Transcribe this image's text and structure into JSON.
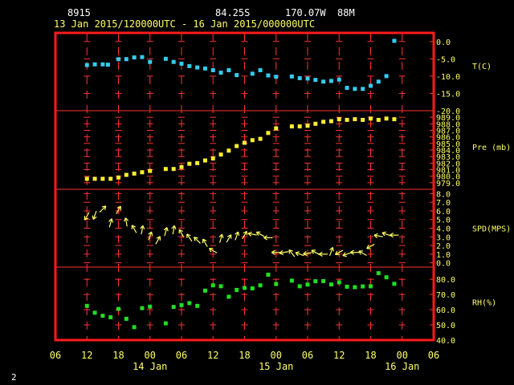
{
  "header": {
    "station": "8915",
    "lat": "84.25S",
    "lon": "170.07W",
    "elev": "88M",
    "period": "13 Jan 2015/120000UTC - 16 Jan 2015/000000UTC"
  },
  "footer": {
    "page_number": "2"
  },
  "colors": {
    "frame": "#ff1a1a",
    "grid": "#ff3333",
    "labels": "#ffff66",
    "temp": "#33ccee",
    "pressure": "#ffee33",
    "wind": "#ffff66",
    "rh": "#22dd22"
  },
  "chart_data": {
    "type": "scatter",
    "x_axis": {
      "tick_labels": [
        "06",
        "12",
        "18",
        "00",
        "06",
        "12",
        "18",
        "00",
        "06",
        "12",
        "18",
        "00",
        "06"
      ],
      "tick_hours": [
        -6,
        0,
        6,
        12,
        18,
        24,
        30,
        36,
        42,
        48,
        54,
        60,
        66
      ],
      "date_labels": [
        {
          "label": "14 Jan",
          "hour": 12
        },
        {
          "label": "15 Jan",
          "hour": 36
        },
        {
          "label": "16 Jan",
          "hour": 60
        }
      ],
      "range_hours": [
        -6,
        66
      ]
    },
    "panels": [
      {
        "id": "temperature",
        "label": "T(C)",
        "ylim": [
          -20,
          2.5
        ],
        "ticks": [
          "0.0",
          "-5.0",
          "-10.0",
          "-15.0",
          "-20.0"
        ],
        "tick_values": [
          0,
          -5,
          -10,
          -15,
          -20
        ],
        "x": [
          0,
          1.5,
          3,
          4,
          6,
          7.5,
          9,
          10.5,
          12,
          15,
          16.5,
          18,
          19.5,
          21,
          22.5,
          24,
          25.5,
          27,
          28.5,
          31.5,
          33,
          34.5,
          36,
          39,
          40.5,
          42,
          43.5,
          45,
          46.5,
          48,
          49.5,
          51,
          52.5,
          54,
          55.5,
          57,
          58.5
        ],
        "y": [
          -6.8,
          -6.6,
          -6.6,
          -6.7,
          -5.1,
          -5.1,
          -4.6,
          -4.5,
          -5.9,
          -5.0,
          -5.9,
          -6.4,
          -7.1,
          -7.5,
          -7.8,
          -8.3,
          -9.0,
          -8.3,
          -9.7,
          -9.3,
          -8.3,
          -9.8,
          -10.2,
          -10.1,
          -10.6,
          -10.7,
          -11.1,
          -11.6,
          -11.4,
          -11.0,
          -13.4,
          -13.7,
          -13.7,
          -12.8,
          -11.6,
          -10.0,
          0.2
        ]
      },
      {
        "id": "pressure",
        "label": "Pre (mb)",
        "ylim": [
          978,
          990
        ],
        "ticks": [
          "989.0",
          "988.0",
          "987.0",
          "986.0",
          "985.0",
          "984.0",
          "983.0",
          "982.0",
          "981.0",
          "980.0",
          "979.0"
        ],
        "tick_values": [
          989,
          988,
          987,
          986,
          985,
          984,
          983,
          982,
          981,
          980,
          979
        ],
        "x": [
          0,
          1.5,
          3,
          4.5,
          6,
          7.5,
          9,
          10.5,
          12,
          15,
          16.5,
          18,
          19.5,
          21,
          22.5,
          24,
          25.5,
          27,
          28.5,
          30,
          31.5,
          33,
          34.5,
          36,
          39,
          40.5,
          42,
          43.5,
          45,
          46.5,
          48,
          49.5,
          51,
          52.5,
          54,
          55.5,
          57,
          58.5
        ],
        "y": [
          979.6,
          979.6,
          979.6,
          979.6,
          979.8,
          980.2,
          980.4,
          980.6,
          980.8,
          981.1,
          981.1,
          981.4,
          981.9,
          982.0,
          982.4,
          982.7,
          983.3,
          983.9,
          984.6,
          985.1,
          985.5,
          985.7,
          986.6,
          987.3,
          987.6,
          987.6,
          987.7,
          988.0,
          988.3,
          988.4,
          988.7,
          988.6,
          988.7,
          988.6,
          988.8,
          988.6,
          988.8,
          988.7
        ]
      },
      {
        "id": "wind_speed",
        "label": "SPD(MPS)",
        "ylim": [
          -0.5,
          8.5
        ],
        "ticks": [
          "8.0",
          "7.0",
          "6.0",
          "5.0",
          "4.0",
          "3.0",
          "2.0",
          "1.0",
          "0.0"
        ],
        "tick_values": [
          8,
          7,
          6,
          5,
          4,
          3,
          2,
          1,
          0
        ],
        "x": [
          0,
          1.5,
          3,
          4.5,
          6,
          7.5,
          9,
          10.5,
          12,
          13.5,
          15,
          16.5,
          18,
          19.5,
          21,
          22.5,
          24,
          25.5,
          27,
          28.5,
          30,
          31.5,
          33,
          34.5,
          36,
          37.5,
          39,
          40.5,
          42,
          43.5,
          45,
          46.5,
          48,
          49.5,
          51,
          52.5,
          54,
          55.5,
          57,
          58.5
        ],
        "y": [
          5.4,
          5.5,
          6.2,
          4.6,
          6.1,
          4.7,
          3.9,
          3.8,
          3.1,
          2.6,
          3.6,
          3.8,
          3.4,
          2.9,
          2.6,
          2.3,
          1.4,
          2.8,
          2.8,
          3.1,
          3.2,
          3.3,
          3.3,
          2.9,
          1.2,
          1.2,
          1.1,
          1.0,
          1.1,
          1.2,
          1.0,
          1.3,
          1.2,
          1.0,
          1.2,
          1.1,
          1.9,
          3.1,
          3.3,
          3.2
        ],
        "direction_deg": [
          210,
          200,
          45,
          15,
          30,
          350,
          330,
          10,
          20,
          30,
          15,
          10,
          330,
          325,
          315,
          330,
          300,
          15,
          30,
          20,
          30,
          280,
          300,
          270,
          270,
          260,
          320,
          290,
          260,
          300,
          270,
          20,
          240,
          250,
          270,
          300,
          240,
          280,
          290,
          270
        ]
      },
      {
        "id": "rh",
        "label": "RH(%)",
        "ylim": [
          40,
          88
        ],
        "ticks": [
          "80.0",
          "70.0",
          "60.0",
          "50.0",
          "40.0"
        ],
        "tick_values": [
          80,
          70,
          60,
          50,
          40
        ],
        "x": [
          0,
          1.5,
          3,
          4.5,
          6,
          7.5,
          9,
          10.5,
          12,
          15,
          16.5,
          18,
          19.5,
          21,
          22.5,
          24,
          25.5,
          27,
          28.5,
          30,
          31.5,
          33,
          34.5,
          36,
          39,
          40.5,
          42,
          43.5,
          45,
          46.5,
          48,
          49.5,
          51,
          52.5,
          54,
          55.5,
          57,
          58.5
        ],
        "y": [
          62.5,
          58.0,
          56.0,
          55.0,
          60.5,
          54.0,
          48.5,
          61.0,
          62.0,
          51.0,
          61.8,
          63.0,
          64.3,
          62.5,
          72.5,
          76.0,
          75.4,
          68.5,
          73.0,
          74.3,
          74.0,
          76.0,
          83.0,
          76.9,
          79.1,
          75.4,
          76.5,
          78.7,
          78.8,
          76.6,
          78.0,
          75.1,
          74.8,
          75.3,
          75.4,
          84.0,
          81.3,
          77.0
        ]
      }
    ]
  }
}
